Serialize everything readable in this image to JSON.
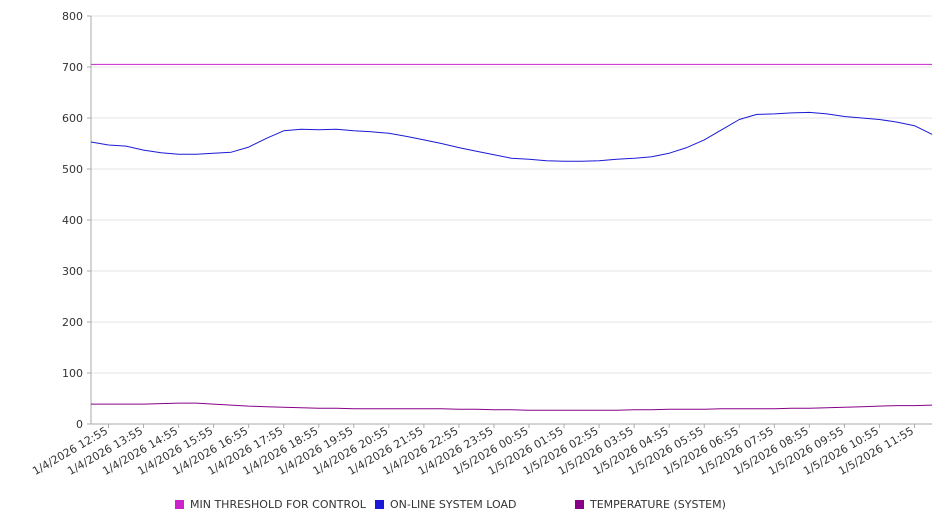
{
  "chart_data": {
    "type": "line",
    "title": "",
    "xlabel": "",
    "ylabel": "",
    "ylim": [
      0,
      800
    ],
    "yticks": [
      0,
      100,
      200,
      300,
      400,
      500,
      600,
      700,
      800
    ],
    "grid": true,
    "legend_position": "bottom",
    "x_tick_labels": [
      "1/4/2026 12:55",
      "1/4/2026 13:55",
      "1/4/2026 14:55",
      "1/4/2026 15:55",
      "1/4/2026 16:55",
      "1/4/2026 17:55",
      "1/4/2026 18:55",
      "1/4/2026 19:55",
      "1/4/2026 20:55",
      "1/4/2026 21:55",
      "1/4/2026 22:55",
      "1/4/2026 23:55",
      "1/5/2026 00:55",
      "1/5/2026 01:55",
      "1/5/2026 02:55",
      "1/5/2026 03:55",
      "1/5/2026 04:55",
      "1/5/2026 05:55",
      "1/5/2026 06:55",
      "1/5/2026 07:55",
      "1/5/2026 08:55",
      "1/5/2026 09:55",
      "1/5/2026 10:55",
      "1/5/2026 11:55"
    ],
    "x": [
      "1/4/2026 12:30",
      "1/4/2026 12:55",
      "1/4/2026 13:25",
      "1/4/2026 13:55",
      "1/4/2026 14:25",
      "1/4/2026 14:55",
      "1/4/2026 15:25",
      "1/4/2026 15:55",
      "1/4/2026 16:25",
      "1/4/2026 16:55",
      "1/4/2026 17:25",
      "1/4/2026 17:55",
      "1/4/2026 18:25",
      "1/4/2026 18:55",
      "1/4/2026 19:25",
      "1/4/2026 19:55",
      "1/4/2026 20:25",
      "1/4/2026 20:55",
      "1/4/2026 21:25",
      "1/4/2026 21:55",
      "1/4/2026 22:25",
      "1/4/2026 22:55",
      "1/4/2026 23:25",
      "1/4/2026 23:55",
      "1/5/2026 00:25",
      "1/5/2026 00:55",
      "1/5/2026 01:25",
      "1/5/2026 01:55",
      "1/5/2026 02:25",
      "1/5/2026 02:55",
      "1/5/2026 03:25",
      "1/5/2026 03:55",
      "1/5/2026 04:25",
      "1/5/2026 04:55",
      "1/5/2026 05:25",
      "1/5/2026 05:55",
      "1/5/2026 06:25",
      "1/5/2026 06:55",
      "1/5/2026 07:25",
      "1/5/2026 07:55",
      "1/5/2026 08:25",
      "1/5/2026 08:55",
      "1/5/2026 09:25",
      "1/5/2026 09:55",
      "1/5/2026 10:25",
      "1/5/2026 10:55",
      "1/5/2026 11:25",
      "1/5/2026 11:55",
      "1/5/2026 12:25"
    ],
    "series": [
      {
        "name": "MIN THRESHOLD FOR CONTROL",
        "color": "#cc22cc",
        "values": [
          705,
          705,
          705,
          705,
          705,
          705,
          705,
          705,
          705,
          705,
          705,
          705,
          705,
          705,
          705,
          705,
          705,
          705,
          705,
          705,
          705,
          705,
          705,
          705,
          705,
          705,
          705,
          705,
          705,
          705,
          705,
          705,
          705,
          705,
          705,
          705,
          705,
          705,
          705,
          705,
          705,
          705,
          705,
          705,
          705,
          705,
          705,
          705,
          705
        ]
      },
      {
        "name": "ON-LINE SYSTEM LOAD",
        "color": "#1a1ad6",
        "values": [
          553,
          547,
          545,
          537,
          532,
          529,
          529,
          531,
          533,
          543,
          560,
          575,
          578,
          577,
          578,
          575,
          573,
          570,
          564,
          557,
          550,
          542,
          535,
          528,
          521,
          519,
          516,
          515,
          515,
          516,
          519,
          521,
          524,
          531,
          542,
          557,
          577,
          597,
          607,
          608,
          610,
          611,
          608,
          603,
          600,
          597,
          592,
          585,
          568
        ]
      },
      {
        "name": "TEMPERATURE (SYSTEM)",
        "color": "#880088",
        "values": [
          39,
          39,
          39,
          39,
          40,
          41,
          41,
          39,
          37,
          35,
          34,
          33,
          32,
          31,
          31,
          30,
          30,
          30,
          30,
          30,
          30,
          29,
          29,
          28,
          28,
          27,
          27,
          27,
          27,
          27,
          27,
          28,
          28,
          29,
          29,
          29,
          30,
          30,
          30,
          30,
          31,
          31,
          32,
          33,
          34,
          35,
          36,
          36,
          37
        ]
      }
    ]
  }
}
